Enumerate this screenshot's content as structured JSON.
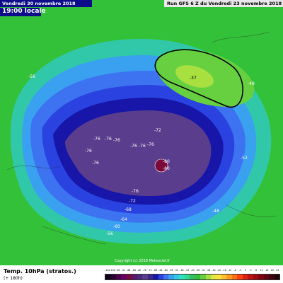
{
  "header": {
    "date": "Vendredi 30 novembre 2018",
    "time": "19:00 locale",
    "run": "Run GFS 6 Z du Vendredi 23 novembre 2018"
  },
  "footer": {
    "title": "Temp. 10hPa (stratos.)",
    "lead": "(+ 180h)"
  },
  "copyright": "Copyright (c) 2018 Meteociel.fr",
  "map": {
    "contour_labels": [
      "-80",
      "-76",
      "-72",
      "-68",
      "-64",
      "-60",
      "-56",
      "-52",
      "-48",
      "-44",
      "-40",
      "-37"
    ],
    "colors": {
      "background_green": "#33c13a",
      "cold_core": "#5a3d8c",
      "coldest_spot": "#7a0a3a",
      "blue_outer": "#3d72f0",
      "blue_mid": "#2a43e0",
      "blue_deep": "#1716a8"
    }
  },
  "scale": {
    "ticks": [
      "-104",
      "-100",
      "-96",
      "-92",
      "-88",
      "-84",
      "-80",
      "-76",
      "-72",
      "-68",
      "-64",
      "-60",
      "-56",
      "-52",
      "-48",
      "-44",
      "-40",
      "-36",
      "-32",
      "-28",
      "-24",
      "-20",
      "-16",
      "-12",
      "-8",
      "-4",
      "0",
      "4",
      "8",
      "12",
      "16",
      "20",
      "24"
    ],
    "colors": [
      "#0a0014",
      "#2a0030",
      "#4a004a",
      "#6a0064",
      "#7a0a3a",
      "#5a1a6a",
      "#4a2a7c",
      "#5a3d8c",
      "#3b2a8a",
      "#1716a8",
      "#2a43e0",
      "#3d72f0",
      "#3aa0f0",
      "#30c8e8",
      "#2ee0c0",
      "#30d890",
      "#34c060",
      "#33c13a",
      "#66d040",
      "#a8e040",
      "#e0e840",
      "#ffe040",
      "#ffc030",
      "#ff9a20",
      "#ff7010",
      "#ff4010",
      "#e02010",
      "#c01010",
      "#a00810",
      "#800010",
      "#600010",
      "#400010",
      "#200008"
    ]
  }
}
